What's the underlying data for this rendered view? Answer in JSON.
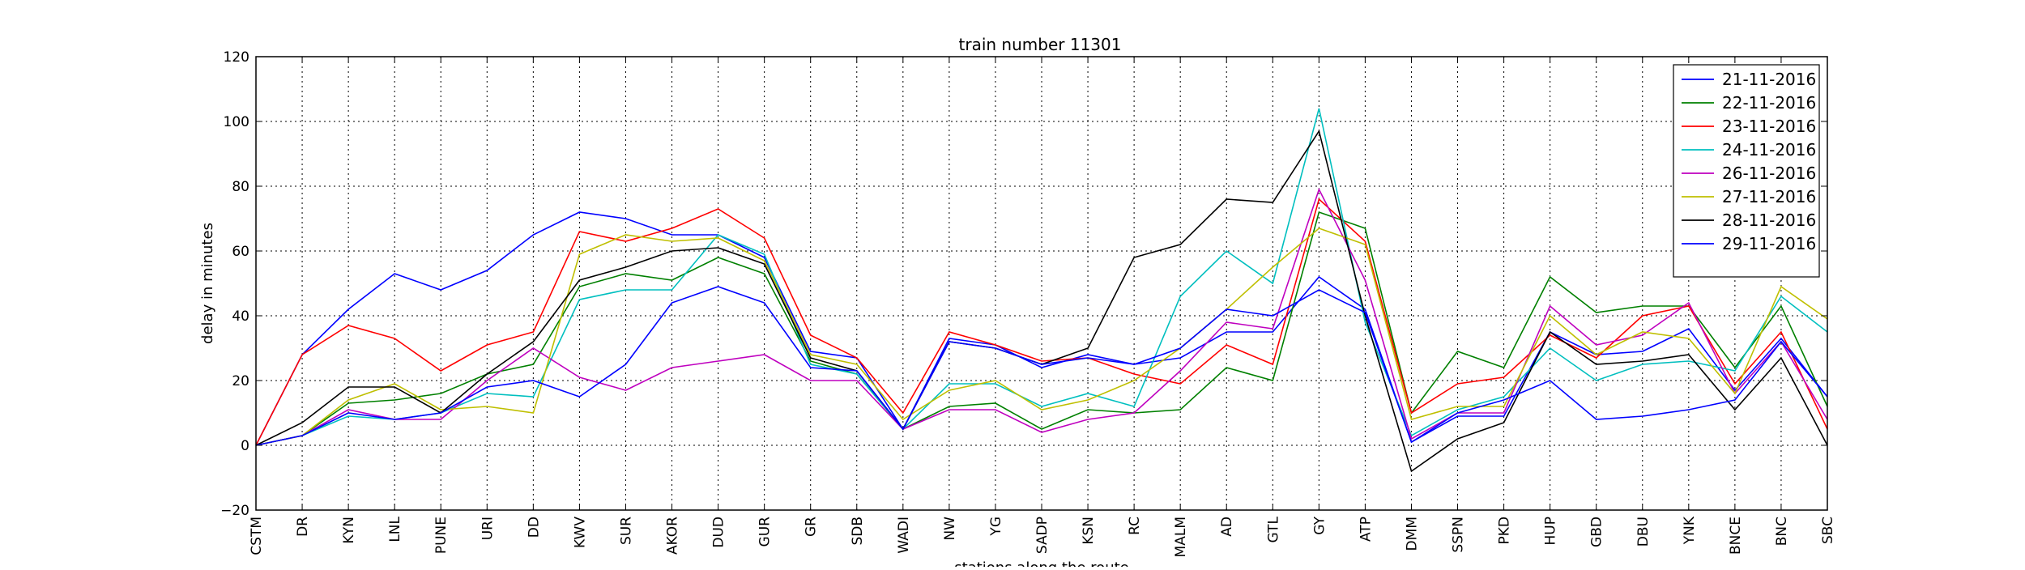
{
  "chart_data": {
    "type": "line",
    "title": "train number 11301",
    "xlabel": "stations along the route",
    "ylabel": "delay in minutes",
    "ylim": [
      -20,
      120
    ],
    "yticks": [
      -20,
      0,
      20,
      40,
      60,
      80,
      100,
      120
    ],
    "grid": true,
    "legend_position": "top-right",
    "categories": [
      "CSTM",
      "DR",
      "KYN",
      "LNL",
      "PUNE",
      "URI",
      "DD",
      "KWV",
      "SUR",
      "AKOR",
      "DUD",
      "GUR",
      "GR",
      "SDB",
      "WADI",
      "NW",
      "YG",
      "SADP",
      "KSN",
      "RC",
      "MALM",
      "AD",
      "GTL",
      "GY",
      "ATP",
      "DMM",
      "SSPN",
      "PKD",
      "HUP",
      "GBD",
      "DBU",
      "YNK",
      "BNCE",
      "BNC",
      "SBC"
    ],
    "series": [
      {
        "name": "21-11-2016",
        "color": "#0000ff",
        "values": [
          0,
          28,
          42,
          53,
          48,
          54,
          65,
          72,
          70,
          65,
          65,
          58,
          29,
          27,
          5,
          33,
          31,
          24,
          28,
          25,
          27,
          35,
          35,
          52,
          42,
          1,
          9,
          9,
          35,
          28,
          29,
          36,
          17,
          33,
          15
        ]
      },
      {
        "name": "22-11-2016",
        "color": "#008000",
        "values": [
          0,
          3,
          13,
          14,
          16,
          22,
          25,
          49,
          53,
          51,
          58,
          53,
          26,
          22,
          5,
          12,
          13,
          5,
          11,
          10,
          11,
          24,
          20,
          72,
          67,
          10,
          29,
          24,
          52,
          41,
          43,
          43,
          24,
          43,
          12
        ]
      },
      {
        "name": "23-11-2016",
        "color": "#ff0000",
        "values": [
          0,
          28,
          37,
          33,
          23,
          31,
          35,
          66,
          63,
          67,
          73,
          64,
          34,
          27,
          10,
          35,
          31,
          26,
          27,
          22,
          19,
          31,
          25,
          76,
          63,
          10,
          19,
          21,
          34,
          27,
          40,
          43,
          19,
          35,
          5
        ]
      },
      {
        "name": "24-11-2016",
        "color": "#00bfbf",
        "values": [
          0,
          3,
          9,
          8,
          10,
          16,
          15,
          45,
          48,
          48,
          65,
          59,
          25,
          22,
          5,
          19,
          19,
          12,
          16,
          12,
          46,
          60,
          50,
          104,
          38,
          3,
          11,
          15,
          30,
          20,
          25,
          26,
          23,
          46,
          35
        ]
      },
      {
        "name": "26-11-2016",
        "color": "#bf00bf",
        "values": [
          0,
          3,
          11,
          8,
          8,
          20,
          30,
          21,
          17,
          24,
          26,
          28,
          20,
          20,
          5,
          11,
          11,
          4,
          8,
          10,
          23,
          38,
          36,
          79,
          51,
          2,
          10,
          10,
          43,
          31,
          34,
          44,
          16,
          32,
          8
        ]
      },
      {
        "name": "27-11-2016",
        "color": "#bfbf00",
        "values": [
          0,
          3,
          14,
          19,
          11,
          12,
          10,
          59,
          65,
          63,
          64,
          57,
          28,
          25,
          8,
          17,
          20,
          11,
          14,
          20,
          30,
          42,
          55,
          67,
          62,
          8,
          12,
          12,
          40,
          28,
          35,
          33,
          16,
          49,
          39
        ]
      },
      {
        "name": "28-11-2016",
        "color": "#000000",
        "values": [
          0,
          7,
          18,
          18,
          10,
          22,
          32,
          51,
          55,
          60,
          61,
          56,
          27,
          23,
          5,
          32,
          30,
          25,
          30,
          58,
          62,
          76,
          75,
          97,
          40,
          -8,
          2,
          7,
          35,
          25,
          26,
          28,
          11,
          27,
          0
        ]
      },
      {
        "name": "29-11-2016",
        "color": "#0000ff",
        "values": [
          0,
          3,
          10,
          8,
          10,
          18,
          20,
          15,
          25,
          44,
          49,
          44,
          24,
          23,
          5,
          32,
          30,
          25,
          27,
          25,
          30,
          42,
          40,
          48,
          41,
          1,
          10,
          14,
          20,
          8,
          9,
          11,
          14,
          32,
          15
        ]
      }
    ]
  }
}
